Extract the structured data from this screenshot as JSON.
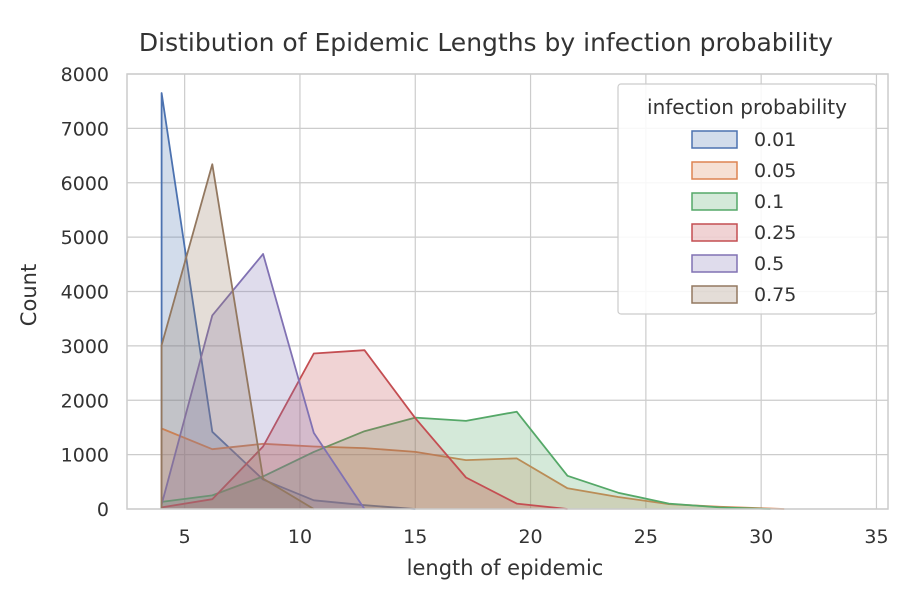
{
  "chart_data": {
    "type": "area",
    "title": "Distibution of Epidemic Lengths by infection probability",
    "xlabel": "length of epidemic",
    "ylabel": "Count",
    "xlim": [
      2.5,
      35.5
    ],
    "ylim": [
      0,
      8000
    ],
    "xticks": [
      5,
      10,
      15,
      20,
      25,
      30,
      35
    ],
    "yticks": [
      0,
      1000,
      2000,
      3000,
      4000,
      5000,
      6000,
      7000,
      8000
    ],
    "grid": true,
    "legend": {
      "title": "infection probability",
      "placement": "top-right"
    },
    "series": [
      {
        "name": "0.01",
        "color": "#4c72b0",
        "x": [
          4,
          4,
          6.2,
          8.4,
          10.6,
          12.8,
          15
        ],
        "y": [
          0,
          7650,
          1420,
          540,
          160,
          70,
          0
        ]
      },
      {
        "name": "0.05",
        "color": "#dd8452",
        "x": [
          4,
          4,
          6.2,
          8.4,
          10.6,
          12.8,
          15,
          17.2,
          19.4,
          21.6,
          23.8,
          26,
          28.2,
          30.4,
          31
        ],
        "y": [
          0,
          1480,
          1100,
          1200,
          1150,
          1120,
          1050,
          900,
          930,
          380,
          220,
          90,
          40,
          10,
          0
        ]
      },
      {
        "name": "0.1",
        "color": "#55a868",
        "x": [
          4,
          4,
          6.2,
          8.4,
          10.6,
          12.8,
          15,
          17.2,
          19.4,
          21.6,
          23.8,
          26,
          28.2,
          30.4
        ],
        "y": [
          0,
          130,
          250,
          600,
          1050,
          1430,
          1680,
          1620,
          1790,
          610,
          300,
          100,
          30,
          0
        ]
      },
      {
        "name": "0.25",
        "color": "#c44e52",
        "x": [
          4,
          4,
          6.2,
          8.4,
          10.6,
          12.8,
          15,
          17.2,
          19.4,
          21.6
        ],
        "y": [
          0,
          30,
          180,
          1150,
          2860,
          2920,
          1670,
          580,
          100,
          0
        ]
      },
      {
        "name": "0.5",
        "color": "#8172b3",
        "x": [
          4,
          4,
          6.2,
          8.4,
          10.6,
          12.8
        ],
        "y": [
          0,
          80,
          3560,
          4690,
          1400,
          0
        ]
      },
      {
        "name": "0.75",
        "color": "#937860",
        "x": [
          4,
          4,
          6.2,
          8.4,
          10.6
        ],
        "y": [
          0,
          3010,
          6340,
          560,
          0
        ]
      }
    ]
  }
}
